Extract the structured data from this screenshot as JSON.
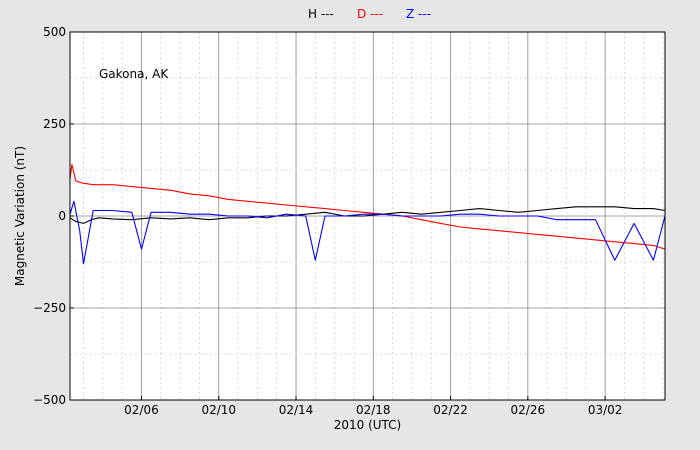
{
  "chart_data": {
    "type": "line",
    "title": "",
    "xlabel": "2010 (UTC)",
    "ylabel": "Magnetic Variation (nT)",
    "annotation": "Gakona, AK",
    "legend_placement": "top-center",
    "grid": true,
    "xlim": [
      33.3,
      64.1
    ],
    "ylim": [
      -500,
      500
    ],
    "x_tick_values": [
      37,
      41,
      45,
      49,
      53,
      57,
      61
    ],
    "x_tick_labels": [
      "02/06",
      "02/10",
      "02/14",
      "02/18",
      "02/22",
      "02/26",
      "03/02"
    ],
    "y_tick_values": [
      500,
      250,
      0,
      -250,
      -500
    ],
    "y_tick_labels": [
      "500",
      "250",
      "0",
      "−250",
      "−500"
    ],
    "series": [
      {
        "name": "H ---",
        "color": "#000000",
        "x": [
          33.3,
          33.6,
          34.0,
          34.4,
          34.8,
          35.5,
          36.5,
          37.5,
          38.5,
          39.5,
          40.5,
          41.5,
          42.5,
          43.5,
          44.5,
          45.5,
          46.5,
          47.5,
          48.5,
          49.5,
          50.5,
          51.5,
          52.5,
          53.5,
          54.5,
          55.5,
          56.5,
          57.5,
          58.5,
          59.5,
          60.5,
          61.5,
          62.5,
          63.5,
          64.1
        ],
        "y": [
          -5,
          -15,
          -20,
          -10,
          -5,
          -8,
          -10,
          -5,
          -8,
          -5,
          -10,
          -5,
          -5,
          0,
          0,
          5,
          10,
          0,
          0,
          5,
          10,
          5,
          10,
          15,
          20,
          15,
          10,
          15,
          20,
          25,
          25,
          25,
          20,
          20,
          15
        ]
      },
      {
        "name": "D ---",
        "color": "#ff0000",
        "x": [
          33.3,
          33.4,
          33.6,
          33.9,
          34.5,
          35.5,
          36.5,
          37.5,
          38.5,
          39.5,
          40.5,
          41.5,
          42.5,
          43.5,
          44.5,
          45.5,
          46.5,
          47.5,
          48.5,
          49.5,
          50.5,
          51.5,
          52.5,
          53.5,
          54.5,
          55.5,
          56.5,
          57.5,
          58.5,
          59.5,
          60.5,
          61.5,
          62.5,
          63.5,
          64.1
        ],
        "y": [
          100,
          140,
          95,
          90,
          85,
          85,
          80,
          75,
          70,
          60,
          55,
          45,
          40,
          35,
          30,
          25,
          20,
          15,
          10,
          5,
          0,
          -10,
          -20,
          -30,
          -35,
          -40,
          -45,
          -50,
          -55,
          -60,
          -65,
          -70,
          -75,
          -80,
          -90
        ]
      },
      {
        "name": "Z ---",
        "color": "#0000ff",
        "x": [
          33.3,
          33.5,
          33.8,
          34.0,
          34.5,
          35.5,
          36.5,
          37.0,
          37.5,
          38.5,
          39.5,
          40.5,
          41.5,
          42.5,
          43.5,
          44.5,
          45.5,
          46.0,
          46.5,
          47.5,
          48.5,
          49.5,
          50.5,
          51.5,
          52.5,
          53.5,
          54.5,
          55.5,
          56.5,
          57.5,
          58.5,
          59.5,
          60.5,
          61.5,
          62.5,
          63.5,
          64.1
        ],
        "y": [
          5,
          40,
          -40,
          -130,
          15,
          15,
          10,
          -90,
          10,
          10,
          5,
          5,
          0,
          0,
          -5,
          5,
          0,
          -120,
          0,
          0,
          5,
          5,
          0,
          0,
          0,
          5,
          5,
          0,
          0,
          0,
          -10,
          -10,
          -10,
          -120,
          -20,
          -120,
          0
        ]
      }
    ]
  }
}
